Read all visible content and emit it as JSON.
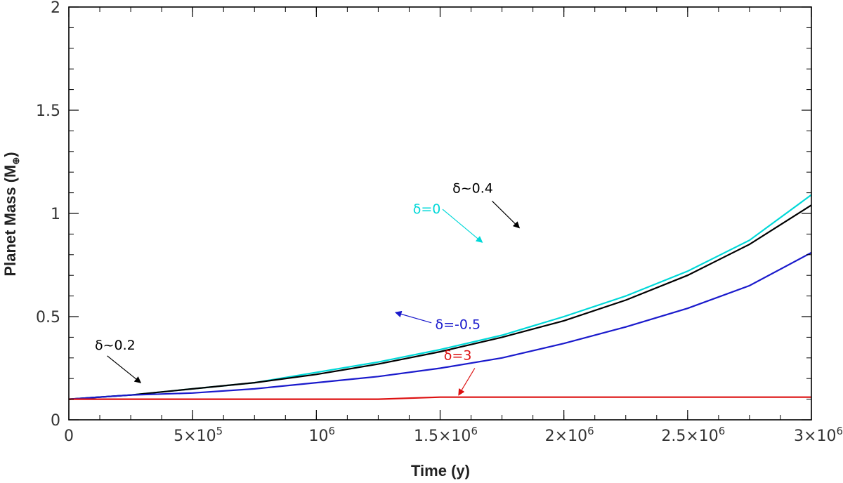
{
  "chart_data": {
    "type": "line",
    "xlabel": "Time (y)",
    "ylabel": "Planet Mass (M",
    "ylabel_sub": "⊕",
    "ylabel_close": ")",
    "xlim": [
      0,
      3000000
    ],
    "ylim": [
      0,
      2
    ],
    "grid": false,
    "legend": "none",
    "x_ticks": [
      {
        "value": 0,
        "label": "0"
      },
      {
        "value": 500000,
        "label": "5×10",
        "sup": "5"
      },
      {
        "value": 1000000,
        "label": "10",
        "sup": "6"
      },
      {
        "value": 1500000,
        "label": "1.5×10",
        "sup": "6"
      },
      {
        "value": 2000000,
        "label": "2×10",
        "sup": "6"
      },
      {
        "value": 2500000,
        "label": "2.5×10",
        "sup": "6"
      },
      {
        "value": 3000000,
        "label": "3×10",
        "sup": "6"
      }
    ],
    "y_ticks": [
      {
        "value": 0,
        "label": "0"
      },
      {
        "value": 0.5,
        "label": "0.5"
      },
      {
        "value": 1,
        "label": "1"
      },
      {
        "value": 1.5,
        "label": "1.5"
      },
      {
        "value": 2,
        "label": "2"
      }
    ],
    "x": [
      0,
      250000,
      500000,
      750000,
      1000000,
      1250000,
      1500000,
      1750000,
      2000000,
      2250000,
      2500000,
      2750000,
      3000000
    ],
    "series": [
      {
        "color": "#00d8d8",
        "values": [
          0.1,
          0.12,
          0.15,
          0.18,
          0.23,
          0.28,
          0.34,
          0.41,
          0.5,
          0.6,
          0.72,
          0.87,
          1.09
        ]
      },
      {
        "color": "#000000",
        "values": [
          0.1,
          0.12,
          0.15,
          0.18,
          0.22,
          0.27,
          0.33,
          0.4,
          0.48,
          0.58,
          0.7,
          0.85,
          1.04
        ]
      },
      {
        "color": "#1a1acc",
        "values": [
          0.1,
          0.12,
          0.13,
          0.15,
          0.18,
          0.21,
          0.25,
          0.3,
          0.37,
          0.45,
          0.54,
          0.65,
          0.81
        ]
      },
      {
        "color": "#dd1111",
        "values": [
          0.1,
          0.1,
          0.1,
          0.1,
          0.1,
          0.1,
          0.11,
          0.11,
          0.11,
          0.11,
          0.11,
          0.11,
          0.11
        ]
      }
    ],
    "annotations": [
      {
        "text": "δ=0",
        "color": "#00d8d8",
        "text_x": 1390000,
        "text_y": 1.0,
        "arrow_from": [
          1510000,
          1.02
        ],
        "arrow_to": [
          1670000,
          0.86
        ]
      },
      {
        "text": "δ~0.4",
        "color": "#000000",
        "text_x": 1550000,
        "text_y": 1.1,
        "arrow_from": [
          1710000,
          1.06
        ],
        "arrow_to": [
          1820000,
          0.93
        ]
      },
      {
        "text": "δ=-0.5",
        "color": "#1a1acc",
        "text_x": 1480000,
        "text_y": 0.44,
        "arrow_from": [
          1465000,
          0.47
        ],
        "arrow_to": [
          1320000,
          0.52
        ]
      },
      {
        "text": "δ~0.2",
        "color": "#000000",
        "text_x": 105000,
        "text_y": 0.34,
        "arrow_from": [
          155000,
          0.31
        ],
        "arrow_to": [
          290000,
          0.18
        ]
      },
      {
        "text": "δ=3",
        "color": "#dd1111",
        "text_x": 1515000,
        "text_y": 0.29,
        "arrow_from": [
          1640000,
          0.25
        ],
        "arrow_to": [
          1575000,
          0.12
        ]
      }
    ]
  }
}
